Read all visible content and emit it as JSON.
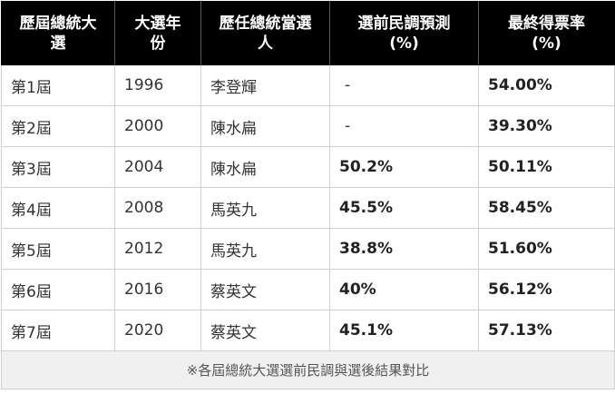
{
  "table": {
    "headers": [
      "歷屆總統大選",
      "大選年份",
      "歷任總統當選人",
      "選前民調預測(%)",
      "最終得票率(%)"
    ],
    "header_lines": [
      [
        "歷屆總統大",
        "選"
      ],
      [
        "大選年",
        "份"
      ],
      [
        "歷任總統當選",
        "人"
      ],
      [
        "選前民調預測",
        "(%)"
      ],
      [
        "最終得票率",
        "(%)"
      ]
    ],
    "rows": [
      {
        "term": "第1屆",
        "year": "1996",
        "winner": "李登輝",
        "poll": "-",
        "result": "54.00%"
      },
      {
        "term": "第2屆",
        "year": "2000",
        "winner": "陳水扁",
        "poll": "-",
        "result": "39.30%"
      },
      {
        "term": "第3屆",
        "year": "2004",
        "winner": "陳水扁",
        "poll": "50.2%",
        "result": "50.11%"
      },
      {
        "term": "第4屆",
        "year": "2008",
        "winner": "馬英九",
        "poll": "45.5%",
        "result": "58.45%"
      },
      {
        "term": "第5屆",
        "year": "2012",
        "winner": "馬英九",
        "poll": "38.8%",
        "result": "51.60%"
      },
      {
        "term": "第6屆",
        "year": "2016",
        "winner": "蔡英文",
        "poll": "40%",
        "result": "56.12%"
      },
      {
        "term": "第7屆",
        "year": "2020",
        "winner": "蔡英文",
        "poll": "45.1%",
        "result": "57.13%"
      }
    ],
    "footnote": "※各屆總統大選選前民調與選後結果對比"
  },
  "colors": {
    "header_bg": "#000000",
    "header_text": "#ffffff",
    "footer_bg": "#f0f0f0",
    "border": "#d0d0d0"
  }
}
